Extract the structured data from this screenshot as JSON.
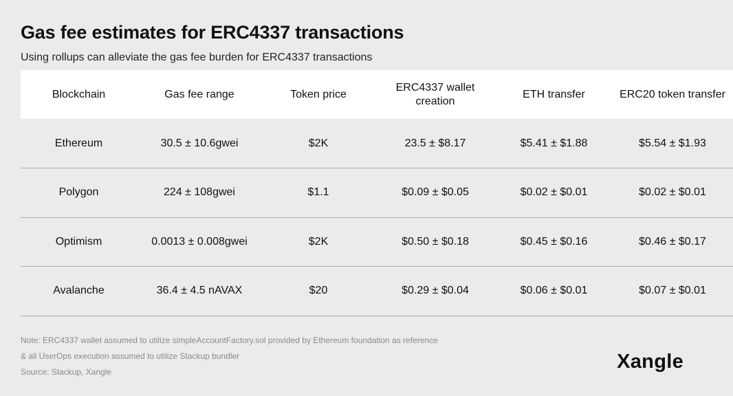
{
  "header": {
    "title": "Gas fee estimates for ERC4337 transactions",
    "subtitle": "Using rollups can alleviate the gas fee burden for ERC4337 transactions"
  },
  "chart_data": {
    "type": "table",
    "columns": [
      "Blockchain",
      "Gas fee range",
      "Token price",
      "ERC4337 wallet creation",
      "ETH transfer",
      "ERC20 token transfer"
    ],
    "rows": [
      [
        "Ethereum",
        "30.5 ± 10.6gwei",
        "$2K",
        "23.5 ± $8.17",
        "$5.41 ± $1.88",
        "$5.54 ± $1.93"
      ],
      [
        "Polygon",
        "224 ± 108gwei",
        "$1.1",
        "$0.09 ± $0.05",
        "$0.02 ± $0.01",
        "$0.02 ± $0.01"
      ],
      [
        "Optimism",
        "0.0013 ± 0.008gwei",
        "$2K",
        "$0.50 ± $0.18",
        "$0.45 ± $0.16",
        "$0.46 ± $0.17"
      ],
      [
        "Avalanche",
        "36.4 ± 4.5 nAVAX",
        "$20",
        "$0.29 ± $0.04",
        "$0.06 ± $0.01",
        "$0.07 ± $0.01"
      ]
    ]
  },
  "footer": {
    "note_line1": "Note: ERC4337 wallet assumed to utilize simpleAccountFactory.sol provided by Ethereum foundation as reference",
    "note_line2": "& all UserOps execution assumed to utilize Stackup bundler",
    "source": "Source: Stackup, Xangle",
    "logo_text": "Xangle"
  },
  "colors": {
    "background": "#ebebeb",
    "header_row": "#ffffff",
    "divider": "#a9a9a9",
    "note_text": "#8a8a8a"
  }
}
